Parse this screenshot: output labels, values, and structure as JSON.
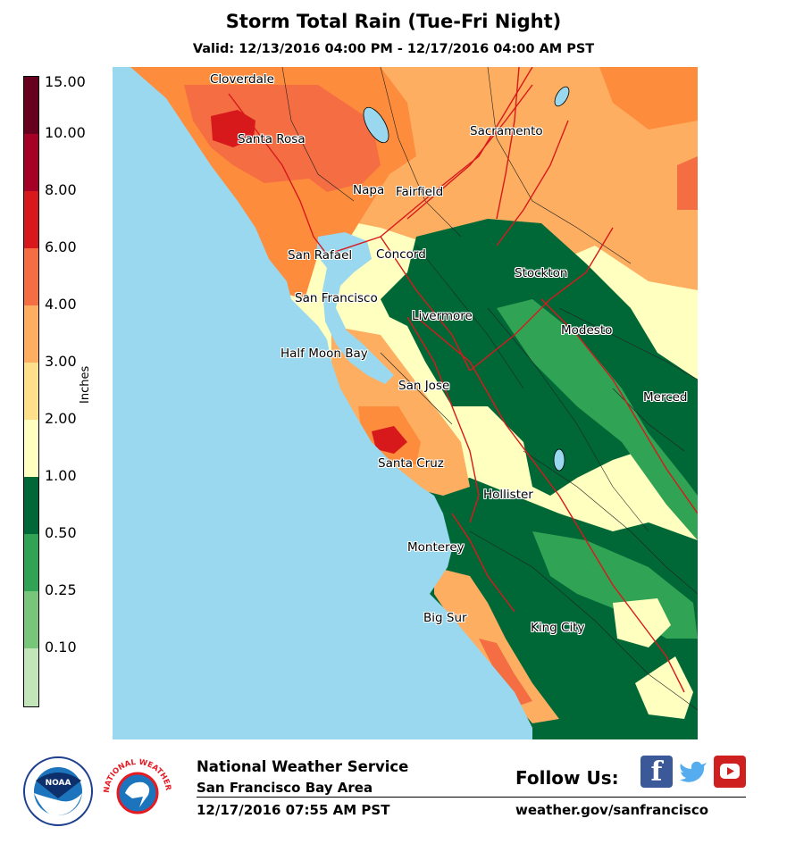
{
  "header": {
    "title": "Storm Total Rain (Tue-Fri Night)",
    "subtitle": "Valid: 12/13/2016 04:00 PM - 12/17/2016 04:00 AM PST"
  },
  "legend": {
    "title": "Inches",
    "labels": [
      "15.00",
      "10.00",
      "8.00",
      "6.00",
      "4.00",
      "3.00",
      "2.00",
      "1.00",
      "0.50",
      "0.25",
      "0.10"
    ],
    "colors": [
      "#67001f",
      "#a50026",
      "#d7191c",
      "#f46d43",
      "#fdae61",
      "#fee08b",
      "#ffffbf",
      "#006837",
      "#31a354",
      "#78c679",
      "#c2e6b9"
    ]
  },
  "map": {
    "ocean_color": "#99d8ee",
    "cities": [
      {
        "name": "Cloverdale"
      },
      {
        "name": "Santa Rosa"
      },
      {
        "name": "Sacramento"
      },
      {
        "name": "Napa"
      },
      {
        "name": "Fairfield"
      },
      {
        "name": "San Rafael"
      },
      {
        "name": "Concord"
      },
      {
        "name": "Stockton"
      },
      {
        "name": "San Francisco"
      },
      {
        "name": "Livermore"
      },
      {
        "name": "Modesto"
      },
      {
        "name": "Half Moon Bay"
      },
      {
        "name": "San Jose"
      },
      {
        "name": "Merced"
      },
      {
        "name": "Santa Cruz"
      },
      {
        "name": "Hollister"
      },
      {
        "name": "Monterey"
      },
      {
        "name": "Big Sur"
      },
      {
        "name": "King City"
      }
    ]
  },
  "footer": {
    "org": "National Weather Service",
    "office": "San Francisco Bay Area",
    "timestamp": "12/17/2016 07:55 AM PST",
    "follow": "Follow Us:",
    "website": "weather.gov/sanfrancisco",
    "noaa_logo": {
      "text": "NOAA",
      "ring_text": "NATIONAL OCEANIC AND ATMOSPHERIC ADMINISTRATION · U.S. DEPARTMENT OF COMMERCE"
    },
    "nws_logo": {
      "ring_text": "NATIONAL WEATHER SERVICE"
    },
    "social": [
      {
        "icon": "facebook-icon",
        "glyph": "f",
        "color": "#3b5998"
      },
      {
        "icon": "twitter-icon",
        "glyph": "🐦",
        "color": "#55acee"
      },
      {
        "icon": "youtube-icon",
        "glyph": "▶",
        "color": "#cd201f"
      }
    ]
  }
}
